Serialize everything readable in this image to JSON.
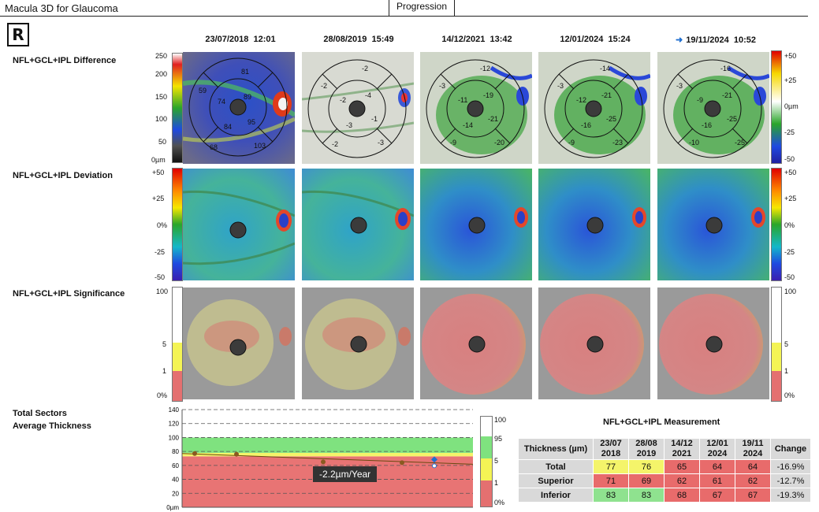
{
  "app": {
    "title": "Macula 3D for Glaucoma"
  },
  "tabs": [
    {
      "label": "Progression",
      "active": true
    }
  ],
  "eye": "R",
  "visits": [
    {
      "date": "23/07/2018",
      "time": "12:01",
      "baseline": false
    },
    {
      "date": "28/08/2019",
      "time": "15:49",
      "baseline": false
    },
    {
      "date": "14/12/2021",
      "time": "13:42",
      "baseline": false
    },
    {
      "date": "12/01/2024",
      "time": "15:24",
      "baseline": false
    },
    {
      "date": "19/11/2024",
      "time": "10:52",
      "baseline": true
    }
  ],
  "rows": {
    "difference": {
      "label": "NFL+GCL+IPL Difference"
    },
    "deviation": {
      "label": "NFL+GCL+IPL Deviation"
    },
    "significance": {
      "label": "NFL+GCL+IPL Significance"
    },
    "trend": {
      "label_line1": "Total Sectors",
      "label_line2": "Average Thickness"
    }
  },
  "thickness_scale": {
    "ticks": [
      "250",
      "200",
      "150",
      "100",
      "50",
      "0µm"
    ]
  },
  "difference_scale": {
    "ticks": [
      "+50",
      "+25",
      "0µm",
      "-25",
      "-50"
    ]
  },
  "deviation_scale": {
    "ticks": [
      "+50",
      "+25",
      "0%",
      "-25",
      "-50"
    ]
  },
  "significance_scale": {
    "ticks": [
      "100",
      "5",
      "1",
      "0%"
    ]
  },
  "sector_values": [
    [
      "81",
      "59",
      "74",
      "89",
      "84",
      "95",
      "68",
      "103"
    ],
    [
      "-2",
      "-2",
      "-2",
      "-4",
      "-3",
      "-1",
      "-2",
      "-3"
    ],
    [
      "-12",
      "-3",
      "-11",
      "-19",
      "-14",
      "-21",
      "-9",
      "-20"
    ],
    [
      "-14",
      "-3",
      "-12",
      "-21",
      "-16",
      "-25",
      "-9",
      "-23"
    ],
    [
      "-16",
      "-3",
      "-9",
      "-21",
      "-16",
      "-25",
      "-10",
      "-25"
    ]
  ],
  "chart_data": {
    "type": "line",
    "title": "",
    "xlabel": "",
    "ylabel": "",
    "y_ticks": [
      "140",
      "120",
      "100",
      "80",
      "60",
      "40",
      "20",
      "0µm"
    ],
    "ylim": [
      0,
      140
    ],
    "x": [
      "23/07/2018",
      "28/08/2019",
      "14/12/2021",
      "12/01/2024",
      "19/11/2024"
    ],
    "series": [
      {
        "values": [
          77,
          76,
          65,
          64,
          64
        ]
      }
    ],
    "bands": [
      {
        "from": 0,
        "to": 73,
        "color": "#e87474"
      },
      {
        "from": 73,
        "to": 78,
        "color": "#f4f46a"
      },
      {
        "from": 78,
        "to": 100,
        "color": "#7fe27f"
      },
      {
        "from": 100,
        "to": 140,
        "color": "#ffffff"
      }
    ],
    "trend_label": "-2.2µm/Year",
    "legend_ticks": [
      "100",
      "95",
      "5",
      "1",
      "0%"
    ]
  },
  "measurement": {
    "title": "NFL+GCL+IPL Measurement",
    "header_label": "Thickness (µm)",
    "columns": [
      {
        "l1": "23/07",
        "l2": "2018"
      },
      {
        "l1": "28/08",
        "l2": "2019"
      },
      {
        "l1": "14/12",
        "l2": "2021"
      },
      {
        "l1": "12/01",
        "l2": "2024"
      },
      {
        "l1": "19/11",
        "l2": "2024"
      }
    ],
    "change_label": "Change",
    "rows": [
      {
        "label": "Total",
        "values": [
          "77",
          "76",
          "65",
          "64",
          "64"
        ],
        "status": [
          "y",
          "y",
          "r",
          "r",
          "r"
        ],
        "change": "-16.9%"
      },
      {
        "label": "Superior",
        "values": [
          "71",
          "69",
          "62",
          "61",
          "62"
        ],
        "status": [
          "r",
          "r",
          "r",
          "r",
          "r"
        ],
        "change": "-12.7%"
      },
      {
        "label": "Inferior",
        "values": [
          "83",
          "83",
          "68",
          "67",
          "67"
        ],
        "status": [
          "g",
          "g",
          "r",
          "r",
          "r"
        ],
        "change": "-19.3%"
      }
    ]
  }
}
